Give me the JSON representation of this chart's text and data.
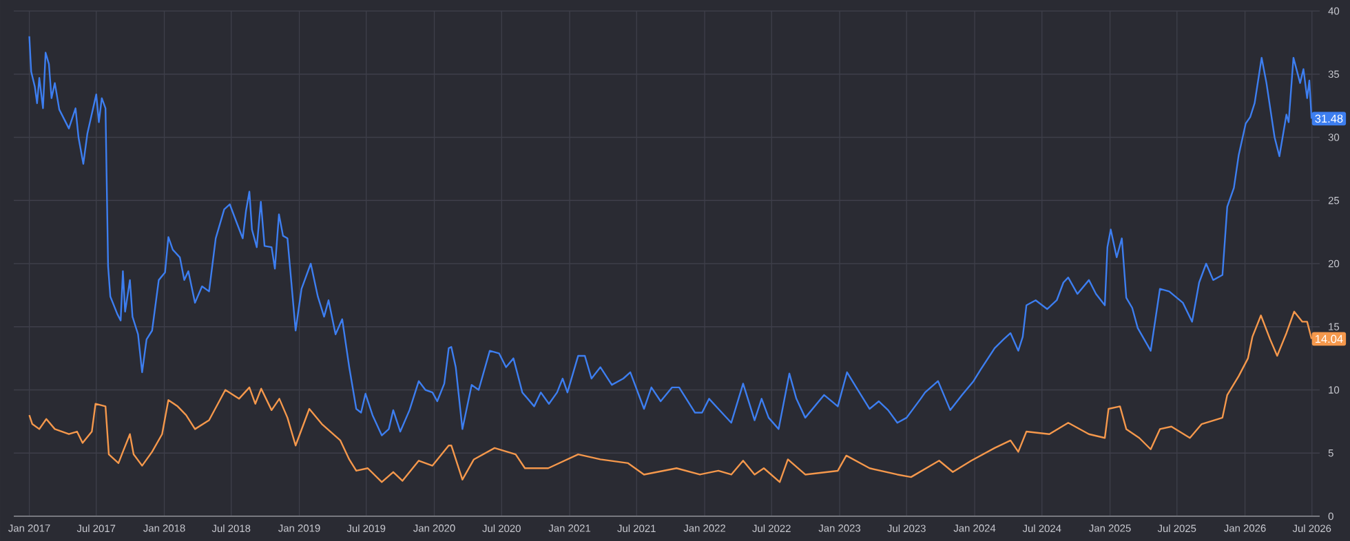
{
  "chart_data": {
    "type": "line",
    "grid": true,
    "xlim": [
      "2016-11-20",
      "2026-07-22"
    ],
    "xticks": [
      {
        "value": "2017-01-01",
        "label": "Jan 2017"
      },
      {
        "value": "2017-07-01",
        "label": "Jul 2017"
      },
      {
        "value": "2018-01-01",
        "label": "Jan 2018"
      },
      {
        "value": "2018-07-01",
        "label": "Jul 2018"
      },
      {
        "value": "2019-01-01",
        "label": "Jan 2019"
      },
      {
        "value": "2019-07-01",
        "label": "Jul 2019"
      },
      {
        "value": "2020-01-01",
        "label": "Jan 2020"
      },
      {
        "value": "2020-07-01",
        "label": "Jul 2020"
      },
      {
        "value": "2021-01-01",
        "label": "Jan 2021"
      },
      {
        "value": "2021-07-01",
        "label": "Jul 2021"
      },
      {
        "value": "2022-01-01",
        "label": "Jan 2022"
      },
      {
        "value": "2022-07-01",
        "label": "Jul 2022"
      },
      {
        "value": "2023-01-01",
        "label": "Jan 2023"
      },
      {
        "value": "2023-07-01",
        "label": "Jul 2023"
      },
      {
        "value": "2024-01-01",
        "label": "Jan 2024"
      },
      {
        "value": "2024-07-01",
        "label": "Jul 2024"
      },
      {
        "value": "2025-01-01",
        "label": "Jan 2025"
      },
      {
        "value": "2025-07-01",
        "label": "Jul 2025"
      },
      {
        "value": "2026-01-01",
        "label": "Jan 2026"
      },
      {
        "value": "2026-07-01",
        "label": "Jul 2026"
      }
    ],
    "ylim": [
      0,
      40
    ],
    "yticks": [
      0,
      5,
      10,
      15,
      20,
      25,
      30,
      35,
      40
    ],
    "series": [
      {
        "color": "#3d7ef0",
        "x": [
          "2017-01-01",
          "2017-01-06",
          "2017-01-16",
          "2017-01-22",
          "2017-01-28",
          "2017-02-07",
          "2017-02-14",
          "2017-02-23",
          "2017-03-02",
          "2017-03-11",
          "2017-03-23",
          "2017-04-18",
          "2017-05-06",
          "2017-05-14",
          "2017-05-27",
          "2017-06-07",
          "2017-07-01",
          "2017-07-08",
          "2017-07-16",
          "2017-07-26",
          "2017-08-02",
          "2017-08-08",
          "2017-08-27",
          "2017-09-05",
          "2017-09-11",
          "2017-09-17",
          "2017-09-30",
          "2017-10-07",
          "2017-10-22",
          "2017-11-02",
          "2017-11-14",
          "2017-11-29",
          "2017-12-17",
          "2018-01-03",
          "2018-01-12",
          "2018-01-24",
          "2018-02-12",
          "2018-02-24",
          "2018-03-07",
          "2018-03-25",
          "2018-04-13",
          "2018-05-02",
          "2018-05-20",
          "2018-06-12",
          "2018-06-27",
          "2018-07-15",
          "2018-08-01",
          "2018-08-10",
          "2018-08-19",
          "2018-08-26",
          "2018-09-08",
          "2018-09-19",
          "2018-09-29",
          "2018-10-18",
          "2018-10-27",
          "2018-11-07",
          "2018-11-18",
          "2018-11-30",
          "2018-12-22",
          "2019-01-07",
          "2019-02-01",
          "2019-02-20",
          "2019-03-09",
          "2019-03-21",
          "2019-04-09",
          "2019-04-27",
          "2019-05-16",
          "2019-06-04",
          "2019-06-17",
          "2019-06-29",
          "2019-07-18",
          "2019-08-12",
          "2019-08-31",
          "2019-09-12",
          "2019-10-01",
          "2019-10-26",
          "2019-11-20",
          "2019-12-08",
          "2019-12-27",
          "2020-01-09",
          "2020-01-28",
          "2020-02-09",
          "2020-02-16",
          "2020-02-28",
          "2020-03-17",
          "2020-04-11",
          "2020-04-30",
          "2020-05-30",
          "2020-06-24",
          "2020-07-13",
          "2020-08-02",
          "2020-08-26",
          "2020-09-27",
          "2020-10-15",
          "2020-11-06",
          "2020-11-28",
          "2020-12-13",
          "2020-12-26",
          "2021-01-24",
          "2021-02-11",
          "2021-03-01",
          "2021-03-25",
          "2021-04-25",
          "2021-05-26",
          "2021-06-14",
          "2021-07-21",
          "2021-08-10",
          "2021-09-04",
          "2021-10-05",
          "2021-10-24",
          "2021-12-06",
          "2021-12-25",
          "2022-01-13",
          "2022-02-07",
          "2022-03-14",
          "2022-04-15",
          "2022-05-16",
          "2022-06-04",
          "2022-06-23",
          "2022-07-20",
          "2022-08-18",
          "2022-09-06",
          "2022-09-30",
          "2022-11-20",
          "2022-12-27",
          "2023-01-21",
          "2023-02-15",
          "2023-03-23",
          "2023-04-17",
          "2023-05-12",
          "2023-06-06",
          "2023-07-01",
          "2023-08-08",
          "2023-08-20",
          "2023-09-24",
          "2023-10-27",
          "2023-11-28",
          "2023-12-29",
          "2024-01-17",
          "2024-02-24",
          "2024-03-19",
          "2024-04-07",
          "2024-04-28",
          "2024-05-10",
          "2024-05-20",
          "2024-06-14",
          "2024-07-15",
          "2024-08-10",
          "2024-08-28",
          "2024-09-10",
          "2024-10-05",
          "2024-11-05",
          "2024-11-24",
          "2024-12-18",
          "2024-12-25",
          "2025-01-03",
          "2025-01-19",
          "2025-02-02",
          "2025-02-14",
          "2025-03-02",
          "2025-03-17",
          "2025-04-21",
          "2025-05-16",
          "2025-06-10",
          "2025-07-17",
          "2025-08-11",
          "2025-08-30",
          "2025-09-18",
          "2025-10-07",
          "2025-11-01",
          "2025-11-14",
          "2025-12-02",
          "2025-12-15",
          "2026-01-03",
          "2026-01-15",
          "2026-01-27",
          "2026-02-15",
          "2026-02-28",
          "2026-03-22",
          "2026-04-04",
          "2026-04-23",
          "2026-04-29",
          "2026-05-12",
          "2026-05-30",
          "2026-06-08",
          "2026-06-18",
          "2026-06-24",
          "2026-06-30"
        ],
        "values": [
          38.0,
          35.2,
          34.0,
          32.7,
          34.7,
          32.3,
          36.7,
          35.8,
          33.1,
          34.3,
          32.2,
          30.7,
          32.3,
          30.0,
          27.9,
          30.3,
          33.4,
          31.2,
          33.1,
          32.3,
          19.8,
          17.4,
          16.0,
          15.5,
          19.4,
          16.2,
          18.7,
          15.8,
          14.4,
          11.4,
          14.0,
          14.7,
          18.7,
          19.3,
          22.1,
          21.1,
          20.5,
          18.7,
          19.4,
          16.9,
          18.2,
          17.8,
          22.0,
          24.3,
          24.7,
          23.3,
          22.0,
          24.2,
          25.7,
          22.7,
          21.3,
          24.9,
          21.4,
          21.3,
          19.6,
          23.9,
          22.2,
          22.0,
          14.7,
          18.0,
          20.0,
          17.4,
          15.8,
          17.1,
          14.4,
          15.6,
          11.8,
          8.5,
          8.2,
          9.7,
          8.0,
          6.4,
          6.9,
          8.4,
          6.7,
          8.4,
          10.7,
          10.0,
          9.8,
          9.1,
          10.5,
          13.3,
          13.4,
          11.8,
          6.9,
          10.4,
          10.0,
          13.1,
          12.9,
          11.8,
          12.5,
          9.8,
          8.7,
          9.8,
          8.9,
          9.8,
          10.9,
          9.8,
          12.7,
          12.7,
          10.9,
          11.8,
          10.4,
          10.9,
          11.4,
          8.5,
          10.2,
          9.1,
          10.2,
          10.2,
          8.2,
          8.2,
          9.3,
          8.5,
          7.4,
          10.5,
          7.6,
          9.3,
          7.8,
          6.9,
          11.3,
          9.3,
          7.8,
          9.6,
          8.7,
          11.4,
          10.2,
          8.5,
          9.1,
          8.4,
          7.4,
          7.8,
          9.3,
          9.8,
          10.7,
          8.4,
          9.6,
          10.7,
          11.6,
          13.3,
          14.0,
          14.5,
          13.1,
          14.2,
          16.7,
          17.1,
          16.4,
          17.1,
          18.5,
          18.9,
          17.6,
          18.7,
          17.6,
          16.7,
          21.3,
          22.7,
          20.5,
          22.0,
          17.3,
          16.5,
          14.9,
          13.1,
          18.0,
          17.8,
          16.9,
          15.4,
          18.5,
          20.0,
          18.7,
          19.1,
          24.5,
          26.0,
          28.6,
          31.1,
          31.6,
          32.7,
          36.3,
          34.3,
          30.0,
          28.5,
          31.8,
          31.2,
          36.3,
          34.3,
          35.4,
          33.1,
          34.5,
          31.48
        ]
      },
      {
        "color": "#f5984c",
        "x": [
          "2017-01-01",
          "2017-01-09",
          "2017-01-28",
          "2017-02-16",
          "2017-03-11",
          "2017-04-18",
          "2017-05-10",
          "2017-05-25",
          "2017-06-19",
          "2017-06-29",
          "2017-07-26",
          "2017-08-04",
          "2017-08-30",
          "2017-09-11",
          "2017-09-30",
          "2017-10-10",
          "2017-11-02",
          "2017-11-29",
          "2017-12-26",
          "2018-01-12",
          "2018-02-06",
          "2018-03-01",
          "2018-03-25",
          "2018-05-02",
          "2018-06-15",
          "2018-07-22",
          "2018-08-19",
          "2018-09-04",
          "2018-09-20",
          "2018-10-18",
          "2018-11-08",
          "2018-11-30",
          "2018-12-22",
          "2019-01-28",
          "2019-03-03",
          "2019-04-22",
          "2019-05-16",
          "2019-06-04",
          "2019-07-05",
          "2019-08-12",
          "2019-09-12",
          "2019-10-07",
          "2019-11-20",
          "2019-12-27",
          "2020-02-09",
          "2020-02-16",
          "2020-03-17",
          "2020-04-17",
          "2020-06-12",
          "2020-08-08",
          "2020-09-02",
          "2020-11-04",
          "2021-01-24",
          "2021-03-25",
          "2021-06-08",
          "2021-07-21",
          "2021-10-17",
          "2021-12-19",
          "2022-02-07",
          "2022-03-14",
          "2022-04-15",
          "2022-05-16",
          "2022-06-10",
          "2022-07-23",
          "2022-08-14",
          "2022-09-30",
          "2022-12-27",
          "2023-01-19",
          "2023-03-23",
          "2023-06-06",
          "2023-07-13",
          "2023-09-27",
          "2023-11-03",
          "2023-12-23",
          "2024-02-24",
          "2024-04-07",
          "2024-04-28",
          "2024-05-20",
          "2024-07-21",
          "2024-09-10",
          "2024-11-05",
          "2024-12-18",
          "2024-12-28",
          "2025-01-28",
          "2025-02-14",
          "2025-03-21",
          "2025-04-21",
          "2025-05-16",
          "2025-06-16",
          "2025-08-05",
          "2025-09-06",
          "2025-11-01",
          "2025-11-14",
          "2025-12-15",
          "2026-01-09",
          "2026-01-21",
          "2026-02-13",
          "2026-03-10",
          "2026-03-29",
          "2026-04-23",
          "2026-05-14",
          "2026-06-05",
          "2026-06-18",
          "2026-06-30"
        ],
        "values": [
          8.0,
          7.3,
          6.9,
          7.7,
          6.9,
          6.5,
          6.7,
          5.8,
          6.7,
          8.9,
          8.7,
          4.9,
          4.2,
          5.1,
          6.5,
          4.9,
          4.0,
          5.1,
          6.5,
          9.2,
          8.7,
          8.0,
          6.9,
          7.6,
          10.0,
          9.3,
          10.2,
          8.9,
          10.1,
          8.4,
          9.3,
          7.8,
          5.6,
          8.5,
          7.3,
          6.0,
          4.5,
          3.6,
          3.8,
          2.7,
          3.5,
          2.8,
          4.4,
          4.0,
          5.6,
          5.6,
          2.9,
          4.5,
          5.4,
          4.9,
          3.8,
          3.8,
          4.9,
          4.5,
          4.2,
          3.3,
          3.8,
          3.3,
          3.6,
          3.3,
          4.4,
          3.3,
          3.8,
          2.7,
          4.5,
          3.3,
          3.6,
          4.8,
          3.8,
          3.3,
          3.1,
          4.4,
          3.5,
          4.4,
          5.4,
          6.0,
          5.1,
          6.7,
          6.5,
          7.4,
          6.5,
          6.2,
          8.5,
          8.7,
          6.9,
          6.2,
          5.3,
          6.9,
          7.1,
          6.2,
          7.3,
          7.8,
          9.6,
          11.1,
          12.5,
          14.2,
          15.9,
          14.0,
          12.7,
          14.5,
          16.2,
          15.4,
          15.4,
          14.04
        ]
      }
    ],
    "annotations": [
      {
        "text": "31.48",
        "x": "2026-06-30",
        "y": 31.48
      },
      {
        "text": "14.04",
        "x": "2026-06-30",
        "y": 14.04
      }
    ]
  }
}
